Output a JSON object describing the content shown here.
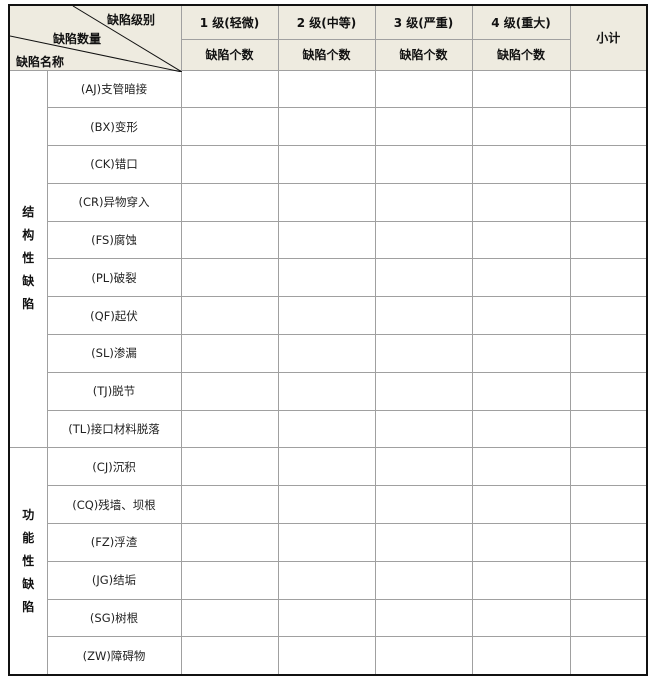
{
  "header": {
    "corner": {
      "level": "缺陷级别",
      "count": "缺陷数量",
      "name": "缺陷名称"
    },
    "grades": [
      "1 级(轻微)",
      "2 级(中等)",
      "3 级(严重)",
      "4 级(重大)"
    ],
    "sub_label": "缺陷个数",
    "subtotal": "小计"
  },
  "groups": [
    {
      "label": [
        "结",
        "构",
        "性",
        "缺",
        "陷"
      ],
      "items": [
        "(AJ)支管暗接",
        "(BX)变形",
        "(CK)错口",
        "(CR)异物穿入",
        "(FS)腐蚀",
        "(PL)破裂",
        "(QF)起伏",
        "(SL)渗漏",
        "(TJ)脱节",
        "(TL)接口材料脱落"
      ]
    },
    {
      "label": [
        "功",
        "能",
        "性",
        "缺",
        "陷"
      ],
      "items": [
        "(CJ)沉积",
        "(CQ)残墙、坝根",
        "(FZ)浮渣",
        "(JG)结垢",
        "(SG)树根",
        "(ZW)障碍物"
      ]
    }
  ],
  "colors": {
    "header_bg": "#eeebe0",
    "border": "#a0a0a0"
  }
}
